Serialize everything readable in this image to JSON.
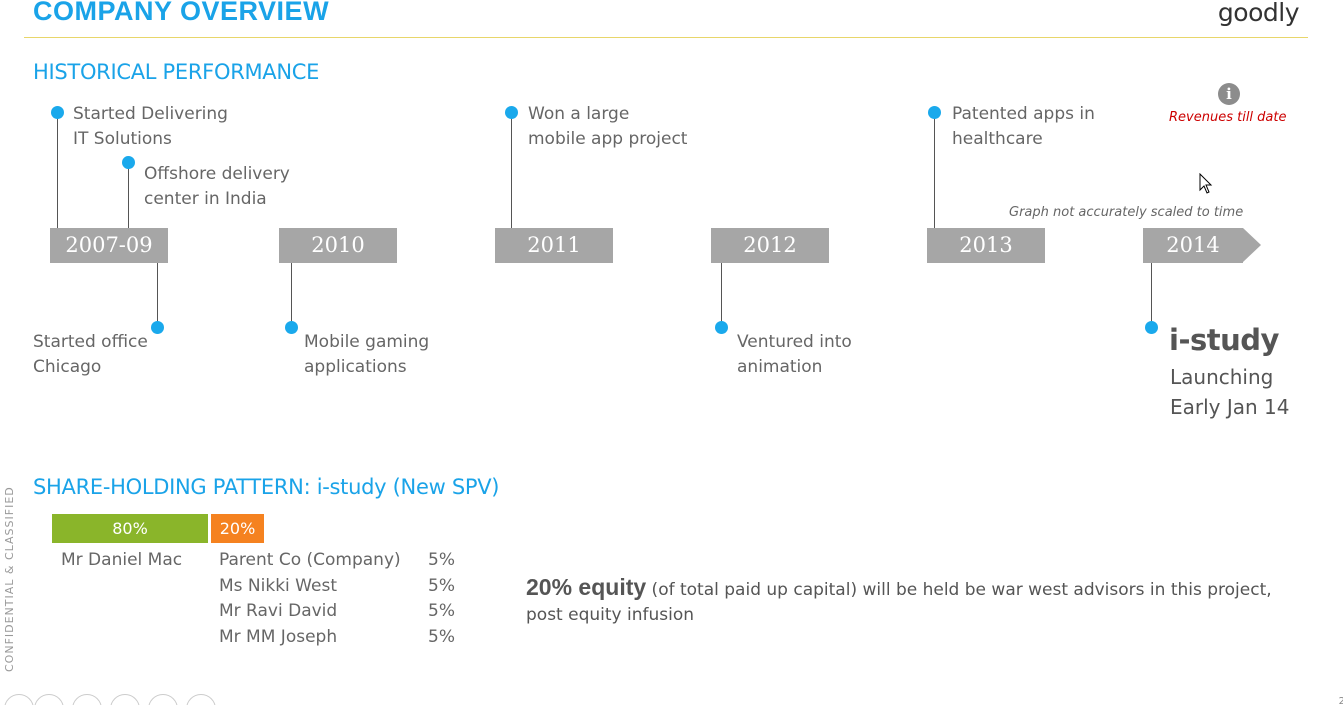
{
  "header": {
    "title": "COMPANY OVERVIEW",
    "logo": "goodly"
  },
  "historical": {
    "title": "HISTORICAL PERFORMANCE",
    "revenues_label": "Revenues till date",
    "info_icon": "info-icon",
    "scale_note": "Graph not accurately scaled to time",
    "years": [
      "2007-09",
      "2010",
      "2011",
      "2012",
      "2013",
      "2014"
    ],
    "events_above": [
      {
        "line1": "Started Delivering",
        "line2": "IT Solutions"
      },
      {
        "line1": "Offshore delivery",
        "line2": "center in India"
      },
      {
        "line1": "Won a large",
        "line2": "mobile app project"
      },
      {
        "line1": "Patented apps in",
        "line2": "healthcare"
      }
    ],
    "events_below": [
      {
        "line1": "Started office",
        "line2": "Chicago"
      },
      {
        "line1": "Mobile gaming",
        "line2": "applications"
      },
      {
        "line1": "Ventured into",
        "line2": "animation"
      }
    ],
    "launch": {
      "title": "i-study",
      "line1": "Launching",
      "line2": "Early Jan 14"
    }
  },
  "shareholding": {
    "title": "SHARE-HOLDING PATTERN: i-study (New SPV)",
    "bars": [
      {
        "label": "80%",
        "value": 80,
        "color": "#8ab52a"
      },
      {
        "label": "20%",
        "value": 20,
        "color": "#f58220"
      }
    ],
    "primary_holder": "Mr Daniel Mac",
    "other_holders": [
      {
        "name": "Parent Co (Company)",
        "pct": "5%"
      },
      {
        "name": "Ms Nikki West",
        "pct": "5%"
      },
      {
        "name": "Mr Ravi David",
        "pct": "5%"
      },
      {
        "name": "Mr MM Joseph",
        "pct": "5%"
      }
    ],
    "equity_bold": "20% equity",
    "equity_text": " (of total paid up capital) will be held be war west advisors in this project, post equity infusion"
  },
  "footer": {
    "confidential": "CONFIDENTIAL & CLASSIFIED",
    "page_number": "2"
  },
  "colors": {
    "accent": "#1aa3e8",
    "dot": "#1aa9ec",
    "year_box": "#a6a6a6",
    "warning": "#cc0000"
  }
}
